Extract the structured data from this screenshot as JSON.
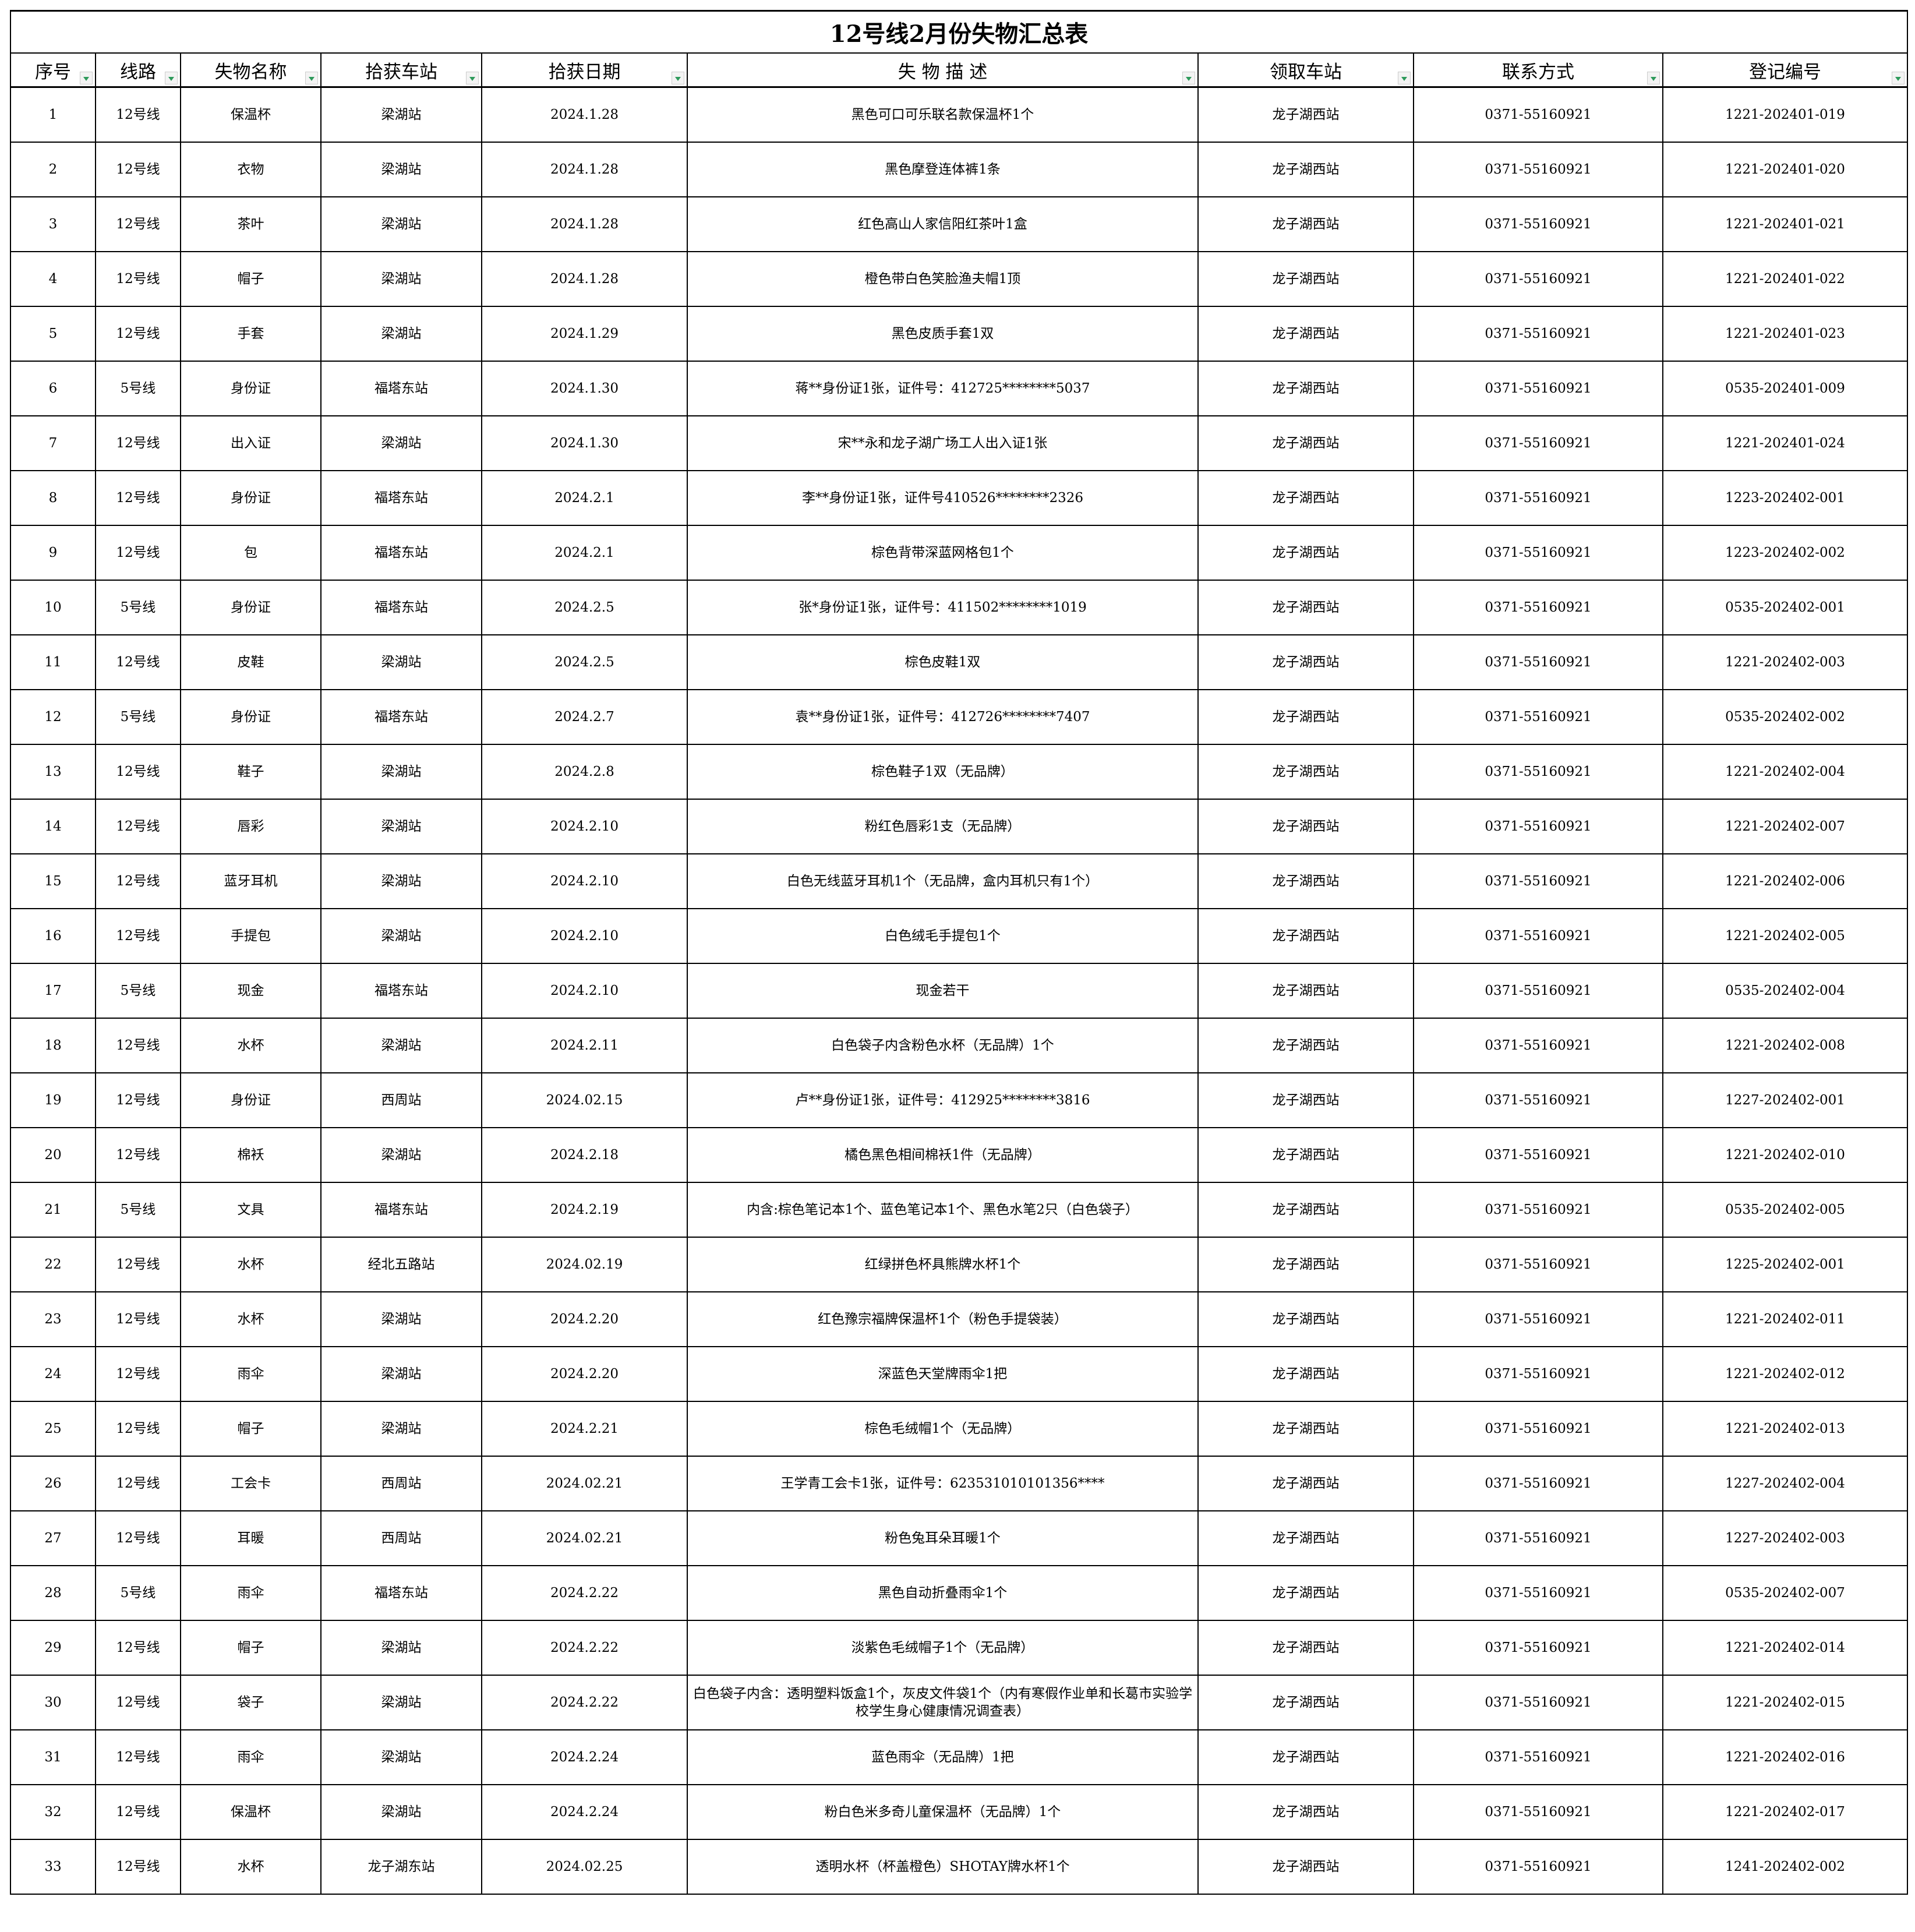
{
  "title": "12号线2月份失物汇总表",
  "headers": [
    "序号",
    "线路",
    "失物名称",
    "拾获车站",
    "拾获日期",
    "失 物 描 述",
    "领取车站",
    "联系方式",
    "登记编号"
  ],
  "filter_icon": "dropdown-filter-icon",
  "rows": [
    [
      "1",
      "12号线",
      "保温杯",
      "梁湖站",
      "2024.1.28",
      "黑色可口可乐联名款保温杯1个",
      "龙子湖西站",
      "0371-55160921",
      "1221-202401-019"
    ],
    [
      "2",
      "12号线",
      "衣物",
      "梁湖站",
      "2024.1.28",
      "黑色摩登连体裤1条",
      "龙子湖西站",
      "0371-55160921",
      "1221-202401-020"
    ],
    [
      "3",
      "12号线",
      "茶叶",
      "梁湖站",
      "2024.1.28",
      "红色高山人家信阳红茶叶1盒",
      "龙子湖西站",
      "0371-55160921",
      "1221-202401-021"
    ],
    [
      "4",
      "12号线",
      "帽子",
      "梁湖站",
      "2024.1.28",
      "橙色带白色笑脸渔夫帽1顶",
      "龙子湖西站",
      "0371-55160921",
      "1221-202401-022"
    ],
    [
      "5",
      "12号线",
      "手套",
      "梁湖站",
      "2024.1.29",
      "黑色皮质手套1双",
      "龙子湖西站",
      "0371-55160921",
      "1221-202401-023"
    ],
    [
      "6",
      "5号线",
      "身份证",
      "福塔东站",
      "2024.1.30",
      "蒋**身份证1张，证件号：412725********5037",
      "龙子湖西站",
      "0371-55160921",
      "0535-202401-009"
    ],
    [
      "7",
      "12号线",
      "出入证",
      "梁湖站",
      "2024.1.30",
      "宋**永和龙子湖广场工人出入证1张",
      "龙子湖西站",
      "0371-55160921",
      "1221-202401-024"
    ],
    [
      "8",
      "12号线",
      "身份证",
      "福塔东站",
      "2024.2.1",
      "李**身份证1张，证件号410526********2326",
      "龙子湖西站",
      "0371-55160921",
      "1223-202402-001"
    ],
    [
      "9",
      "12号线",
      "包",
      "福塔东站",
      "2024.2.1",
      "棕色背带深蓝网格包1个",
      "龙子湖西站",
      "0371-55160921",
      "1223-202402-002"
    ],
    [
      "10",
      "5号线",
      "身份证",
      "福塔东站",
      "2024.2.5",
      "张*身份证1张，证件号：411502********1019",
      "龙子湖西站",
      "0371-55160921",
      "0535-202402-001"
    ],
    [
      "11",
      "12号线",
      "皮鞋",
      "梁湖站",
      "2024.2.5",
      "棕色皮鞋1双",
      "龙子湖西站",
      "0371-55160921",
      "1221-202402-003"
    ],
    [
      "12",
      "5号线",
      "身份证",
      "福塔东站",
      "2024.2.7",
      "袁**身份证1张，证件号：412726********7407",
      "龙子湖西站",
      "0371-55160921",
      "0535-202402-002"
    ],
    [
      "13",
      "12号线",
      "鞋子",
      "梁湖站",
      "2024.2.8",
      "棕色鞋子1双（无品牌）",
      "龙子湖西站",
      "0371-55160921",
      "1221-202402-004"
    ],
    [
      "14",
      "12号线",
      "唇彩",
      "梁湖站",
      "2024.2.10",
      "粉红色唇彩1支（无品牌）",
      "龙子湖西站",
      "0371-55160921",
      "1221-202402-007"
    ],
    [
      "15",
      "12号线",
      "蓝牙耳机",
      "梁湖站",
      "2024.2.10",
      "白色无线蓝牙耳机1个（无品牌，盒内耳机只有1个）",
      "龙子湖西站",
      "0371-55160921",
      "1221-202402-006"
    ],
    [
      "16",
      "12号线",
      "手提包",
      "梁湖站",
      "2024.2.10",
      "白色绒毛手提包1个",
      "龙子湖西站",
      "0371-55160921",
      "1221-202402-005"
    ],
    [
      "17",
      "5号线",
      "现金",
      "福塔东站",
      "2024.2.10",
      "现金若干",
      "龙子湖西站",
      "0371-55160921",
      "0535-202402-004"
    ],
    [
      "18",
      "12号线",
      "水杯",
      "梁湖站",
      "2024.2.11",
      "白色袋子内含粉色水杯（无品牌）1个",
      "龙子湖西站",
      "0371-55160921",
      "1221-202402-008"
    ],
    [
      "19",
      "12号线",
      "身份证",
      "西周站",
      "2024.02.15",
      "卢**身份证1张，证件号：412925********3816",
      "龙子湖西站",
      "0371-55160921",
      "1227-202402-001"
    ],
    [
      "20",
      "12号线",
      "棉袄",
      "梁湖站",
      "2024.2.18",
      "橘色黑色相间棉袄1件（无品牌）",
      "龙子湖西站",
      "0371-55160921",
      "1221-202402-010"
    ],
    [
      "21",
      "5号线",
      "文具",
      "福塔东站",
      "2024.2.19",
      "内含:棕色笔记本1个、蓝色笔记本1个、黑色水笔2只（白色袋子）",
      "龙子湖西站",
      "0371-55160921",
      "0535-202402-005"
    ],
    [
      "22",
      "12号线",
      "水杯",
      "经北五路站",
      "2024.02.19",
      "红绿拼色杯具熊牌水杯1个",
      "龙子湖西站",
      "0371-55160921",
      "1225-202402-001"
    ],
    [
      "23",
      "12号线",
      "水杯",
      "梁湖站",
      "2024.2.20",
      "红色豫宗福牌保温杯1个（粉色手提袋装）",
      "龙子湖西站",
      "0371-55160921",
      "1221-202402-011"
    ],
    [
      "24",
      "12号线",
      "雨伞",
      "梁湖站",
      "2024.2.20",
      "深蓝色天堂牌雨伞1把",
      "龙子湖西站",
      "0371-55160921",
      "1221-202402-012"
    ],
    [
      "25",
      "12号线",
      "帽子",
      "梁湖站",
      "2024.2.21",
      "棕色毛绒帽1个（无品牌）",
      "龙子湖西站",
      "0371-55160921",
      "1221-202402-013"
    ],
    [
      "26",
      "12号线",
      "工会卡",
      "西周站",
      "2024.02.21",
      "王学青工会卡1张，证件号：623531010101356****",
      "龙子湖西站",
      "0371-55160921",
      "1227-202402-004"
    ],
    [
      "27",
      "12号线",
      "耳暖",
      "西周站",
      "2024.02.21",
      "粉色兔耳朵耳暖1个",
      "龙子湖西站",
      "0371-55160921",
      "1227-202402-003"
    ],
    [
      "28",
      "5号线",
      "雨伞",
      "福塔东站",
      "2024.2.22",
      "黑色自动折叠雨伞1个",
      "龙子湖西站",
      "0371-55160921",
      "0535-202402-007"
    ],
    [
      "29",
      "12号线",
      "帽子",
      "梁湖站",
      "2024.2.22",
      "淡紫色毛绒帽子1个（无品牌）",
      "龙子湖西站",
      "0371-55160921",
      "1221-202402-014"
    ],
    [
      "30",
      "12号线",
      "袋子",
      "梁湖站",
      "2024.2.22",
      "白色袋子内含：透明塑料饭盒1个，灰皮文件袋1个（内有寒假作业单和长葛市实验学校学生身心健康情况调查表）",
      "龙子湖西站",
      "0371-55160921",
      "1221-202402-015"
    ],
    [
      "31",
      "12号线",
      "雨伞",
      "梁湖站",
      "2024.2.24",
      "蓝色雨伞（无品牌）1把",
      "龙子湖西站",
      "0371-55160921",
      "1221-202402-016"
    ],
    [
      "32",
      "12号线",
      "保温杯",
      "梁湖站",
      "2024.2.24",
      "粉白色米多奇儿童保温杯（无品牌）1个",
      "龙子湖西站",
      "0371-55160921",
      "1221-202402-017"
    ],
    [
      "33",
      "12号线",
      "水杯",
      "龙子湖东站",
      "2024.02.25",
      "透明水杯（杯盖橙色）SHOTAY牌水杯1个",
      "龙子湖西站",
      "0371-55160921",
      "1241-202402-002"
    ]
  ]
}
